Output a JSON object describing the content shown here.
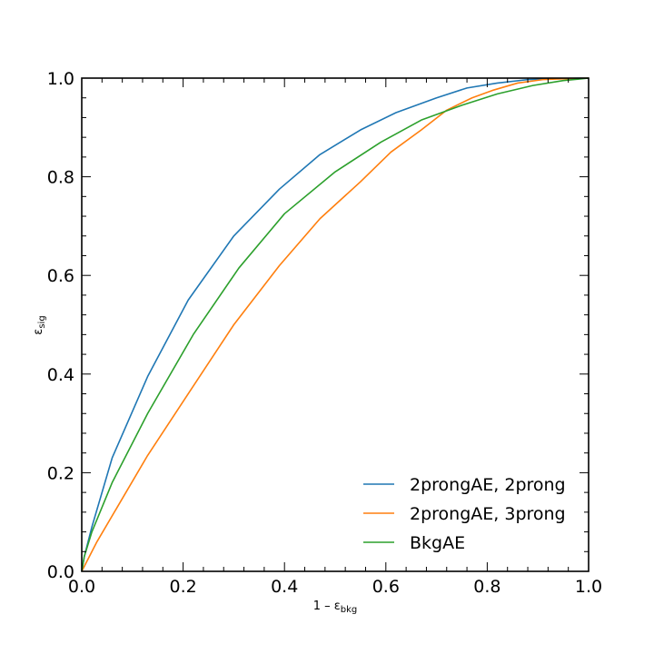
{
  "chart_data": {
    "type": "line",
    "title": "",
    "xlabel": {
      "main": "1 – ε",
      "sub": "bkg"
    },
    "ylabel": {
      "main": "ε",
      "sub": "sig"
    },
    "xlim": [
      0.0,
      1.0
    ],
    "ylim": [
      0.0,
      1.0
    ],
    "x_ticks": [
      0.0,
      0.2,
      0.4,
      0.6,
      0.8,
      1.0
    ],
    "y_ticks": [
      0.0,
      0.2,
      0.4,
      0.6,
      0.8,
      1.0
    ],
    "x_tick_labels": [
      "0.0",
      "0.2",
      "0.4",
      "0.6",
      "0.8",
      "1.0"
    ],
    "y_tick_labels": [
      "0.0",
      "0.2",
      "0.4",
      "0.6",
      "0.8",
      "1.0"
    ],
    "grid": false,
    "legend_placement": "lower-right",
    "series": [
      {
        "name": "2prongAE, 2prong",
        "color": "#1f77b4",
        "x": [
          0.0,
          0.005,
          0.02,
          0.06,
          0.13,
          0.21,
          0.3,
          0.39,
          0.47,
          0.55,
          0.62,
          0.7,
          0.76,
          0.82,
          0.88,
          0.94,
          1.0
        ],
        "y": [
          0.0,
          0.03,
          0.09,
          0.23,
          0.395,
          0.55,
          0.68,
          0.775,
          0.845,
          0.895,
          0.93,
          0.96,
          0.98,
          0.99,
          0.997,
          0.999,
          1.0
        ]
      },
      {
        "name": "2prongAE, 3prong",
        "color": "#ff7f0e",
        "x": [
          0.0,
          0.01,
          0.03,
          0.07,
          0.13,
          0.21,
          0.3,
          0.39,
          0.47,
          0.55,
          0.61,
          0.67,
          0.72,
          0.77,
          0.81,
          0.86,
          0.91,
          0.96,
          1.0
        ],
        "y": [
          0.0,
          0.02,
          0.06,
          0.13,
          0.235,
          0.36,
          0.5,
          0.62,
          0.715,
          0.79,
          0.85,
          0.895,
          0.935,
          0.96,
          0.975,
          0.99,
          0.997,
          0.999,
          1.0
        ]
      },
      {
        "name": "BkgAE",
        "color": "#2ca02c",
        "x": [
          0.0,
          0.005,
          0.02,
          0.06,
          0.13,
          0.22,
          0.31,
          0.4,
          0.5,
          0.59,
          0.67,
          0.75,
          0.82,
          0.89,
          0.95,
          1.0
        ],
        "y": [
          0.0,
          0.03,
          0.08,
          0.18,
          0.32,
          0.48,
          0.615,
          0.725,
          0.81,
          0.87,
          0.915,
          0.945,
          0.968,
          0.985,
          0.995,
          1.0
        ]
      }
    ]
  }
}
